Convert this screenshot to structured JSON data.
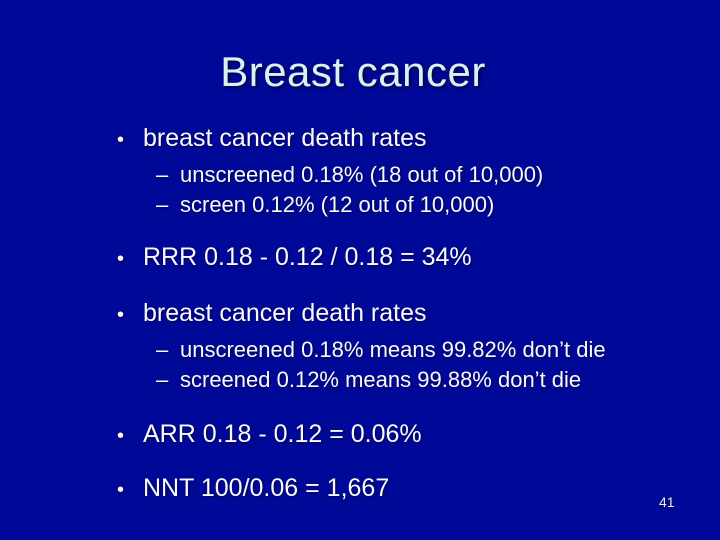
{
  "slide": {
    "title": "Breast cancer",
    "page_number": "41",
    "colors": {
      "background": "#000897",
      "title_text": "#D9F2F0",
      "body_text": "#FAFAFA"
    },
    "bullets": [
      {
        "level": 1,
        "marker": "•",
        "text": "breast cancer death rates"
      },
      {
        "level": 2,
        "marker": "–",
        "text": "unscreened 0.18% (18 out of 10,000)"
      },
      {
        "level": 2,
        "marker": "–",
        "text": "screen 0.12% (12 out of 10,000)"
      },
      {
        "level": 1,
        "marker": "•",
        "text": "RRR 0.18 - 0.12 / 0.18 = 34%"
      },
      {
        "level": 1,
        "marker": "•",
        "text": "breast cancer death rates"
      },
      {
        "level": 2,
        "marker": "–",
        "text": "unscreened 0.18% means 99.82% don’t die"
      },
      {
        "level": 2,
        "marker": "–",
        "text": "screened 0.12% means 99.88% don’t die"
      },
      {
        "level": 1,
        "marker": "•",
        "text": "ARR 0.18 - 0.12 = 0.06%"
      },
      {
        "level": 1,
        "marker": "•",
        "text": "NNT 100/0.06 = 1,667"
      }
    ]
  }
}
